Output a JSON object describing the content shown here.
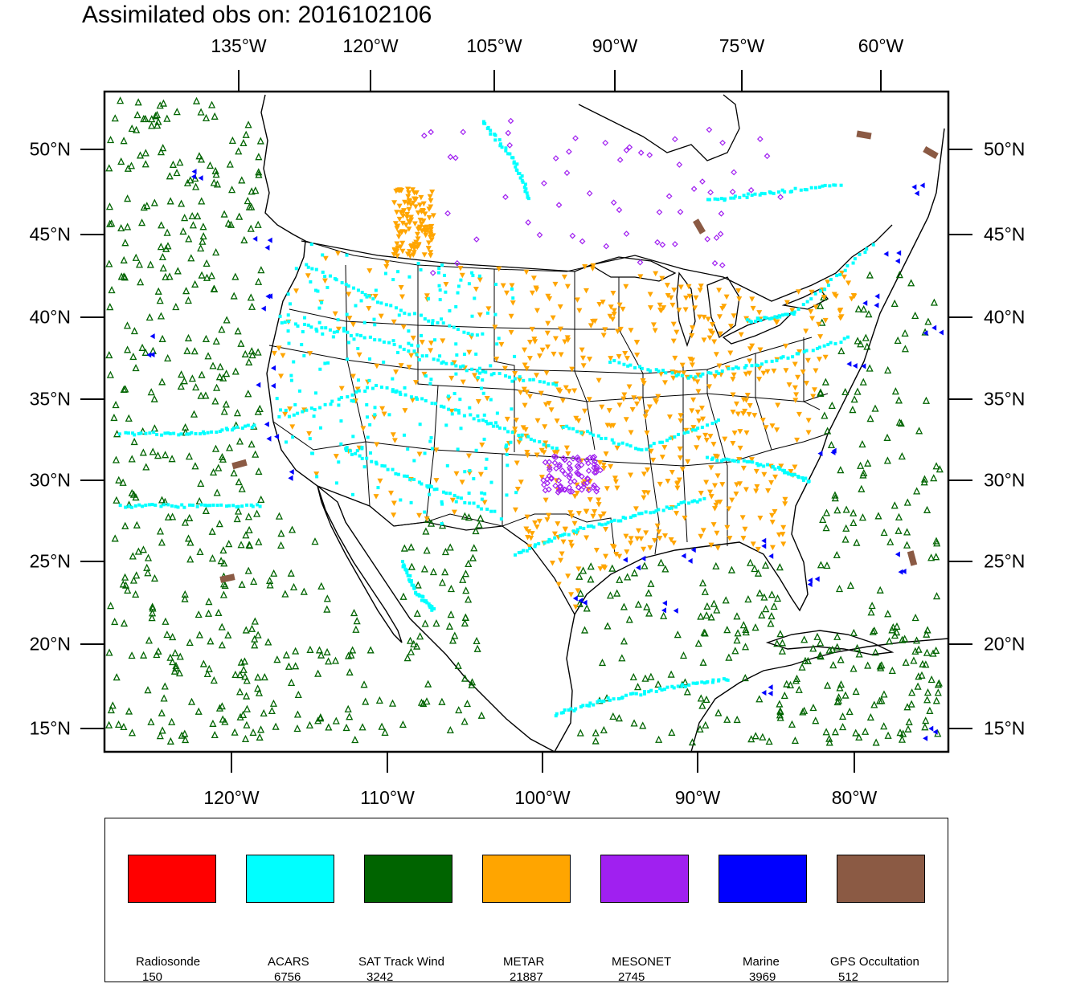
{
  "title": "Assimilated obs on: 2016102106",
  "top_axis": [
    "135°W",
    "120°W",
    "105°W",
    "90°W",
    "75°W",
    "60°W"
  ],
  "bottom_axis": [
    "120°W",
    "110°W",
    "100°W",
    "90°W",
    "80°W"
  ],
  "left_axis": [
    "50°N",
    "45°N",
    "40°N",
    "35°N",
    "30°N",
    "25°N",
    "20°N",
    "15°N"
  ],
  "right_axis": [
    "50°N",
    "45°N",
    "40°N",
    "35°N",
    "30°N",
    "25°N",
    "20°N",
    "15°N"
  ],
  "legend": [
    {
      "label": "Radiosonde",
      "count": "150",
      "color": "#ff0000"
    },
    {
      "label": "ACARS",
      "count": "6756",
      "color": "#00ffff"
    },
    {
      "label": "SAT Track Wind",
      "count": "3242",
      "color": "#006400"
    },
    {
      "label": "METAR",
      "count": "21887",
      "color": "#ffa500"
    },
    {
      "label": "MESONET",
      "count": "2745",
      "color": "#a020f0"
    },
    {
      "label": "Marine",
      "count": "3969",
      "color": "#0000ff"
    },
    {
      "label": "GPS Occultation",
      "count": "512",
      "color": "#8b5a44"
    }
  ]
}
